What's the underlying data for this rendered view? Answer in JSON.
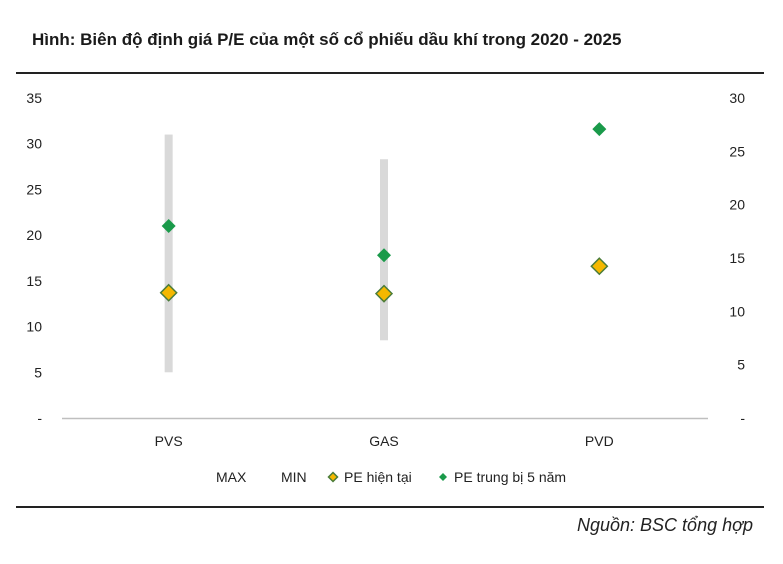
{
  "title": "Hình: Biên độ định giá P/E của một số cổ phiếu dầu khí trong 2020 - 2025",
  "source": "Nguồn: BSC tổng hợp",
  "chart_data": {
    "type": "scatter",
    "categories": [
      "PVS",
      "GAS",
      "PVD"
    ],
    "y_left": {
      "min": 0,
      "max": 35,
      "ticks": [
        "-",
        "5",
        "10",
        "15",
        "20",
        "25",
        "30",
        "35"
      ]
    },
    "y_right": {
      "min": 0,
      "max": 30,
      "ticks": [
        "-",
        "5",
        "10",
        "15",
        "20",
        "25",
        "30"
      ]
    },
    "range": {
      "max_label": "MAX",
      "min_label": "MIN",
      "max": [
        31,
        28.3,
        null
      ],
      "min": [
        5,
        8.5,
        null
      ],
      "axis": "left"
    },
    "series": [
      {
        "name": "PE hiện tại",
        "values": [
          13.7,
          13.6,
          16.6
        ],
        "axis": "left",
        "color": "#f5b800",
        "stroke": "#4a7c3a"
      },
      {
        "name": "PE trung bị 5 năm",
        "values": [
          21,
          17.8,
          31.6
        ],
        "axis": "left",
        "color": "#1a9a4a"
      }
    ],
    "grid": false,
    "legend_position": "bottom",
    "colors": {
      "range_bar": "#d9d9d9",
      "axis": "#bfbfbf"
    }
  }
}
